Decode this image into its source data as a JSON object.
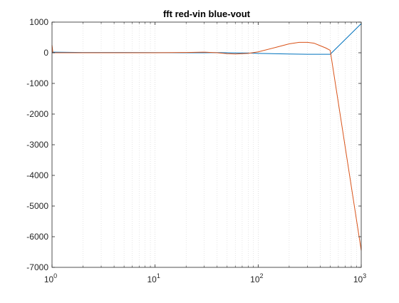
{
  "chart_data": {
    "type": "line",
    "title": "fft red-vin blue-vout",
    "xlabel": "",
    "ylabel": "",
    "xscale": "log",
    "xlim": [
      1,
      1000
    ],
    "ylim": [
      -7000,
      1000
    ],
    "grid": "x-major-and-minor-dotted",
    "legend": "none",
    "x_ticks": [
      {
        "value": 1,
        "base": "10",
        "exp": "0"
      },
      {
        "value": 10,
        "base": "10",
        "exp": "1"
      },
      {
        "value": 100,
        "base": "10",
        "exp": "2"
      },
      {
        "value": 1000,
        "base": "10",
        "exp": "3"
      }
    ],
    "y_ticks": [
      {
        "value": 1000,
        "label": "1000"
      },
      {
        "value": 0,
        "label": "0"
      },
      {
        "value": -1000,
        "label": "-1000"
      },
      {
        "value": -2000,
        "label": "-2000"
      },
      {
        "value": -3000,
        "label": "-3000"
      },
      {
        "value": -4000,
        "label": "-4000"
      },
      {
        "value": -5000,
        "label": "-5000"
      },
      {
        "value": -6000,
        "label": "-6000"
      },
      {
        "value": -7000,
        "label": "-7000"
      }
    ],
    "series": [
      {
        "color": "#0072bd",
        "x": [
          1,
          2,
          5,
          10,
          20,
          30,
          40,
          60,
          80,
          100,
          200,
          300,
          400,
          500,
          1000
        ],
        "y": [
          20,
          10,
          10,
          5,
          0,
          0,
          5,
          -5,
          -10,
          -20,
          -40,
          -50,
          -50,
          -50,
          950
        ]
      },
      {
        "color": "#d95319",
        "x": [
          1,
          1.02,
          2,
          5,
          10,
          20,
          30,
          40,
          50,
          60,
          80,
          100,
          150,
          200,
          250,
          300,
          350,
          400,
          450,
          500,
          1000
        ],
        "y": [
          250,
          0,
          0,
          0,
          0,
          10,
          20,
          0,
          -30,
          -40,
          -20,
          30,
          180,
          290,
          340,
          340,
          310,
          230,
          160,
          80,
          -6450
        ]
      }
    ]
  }
}
